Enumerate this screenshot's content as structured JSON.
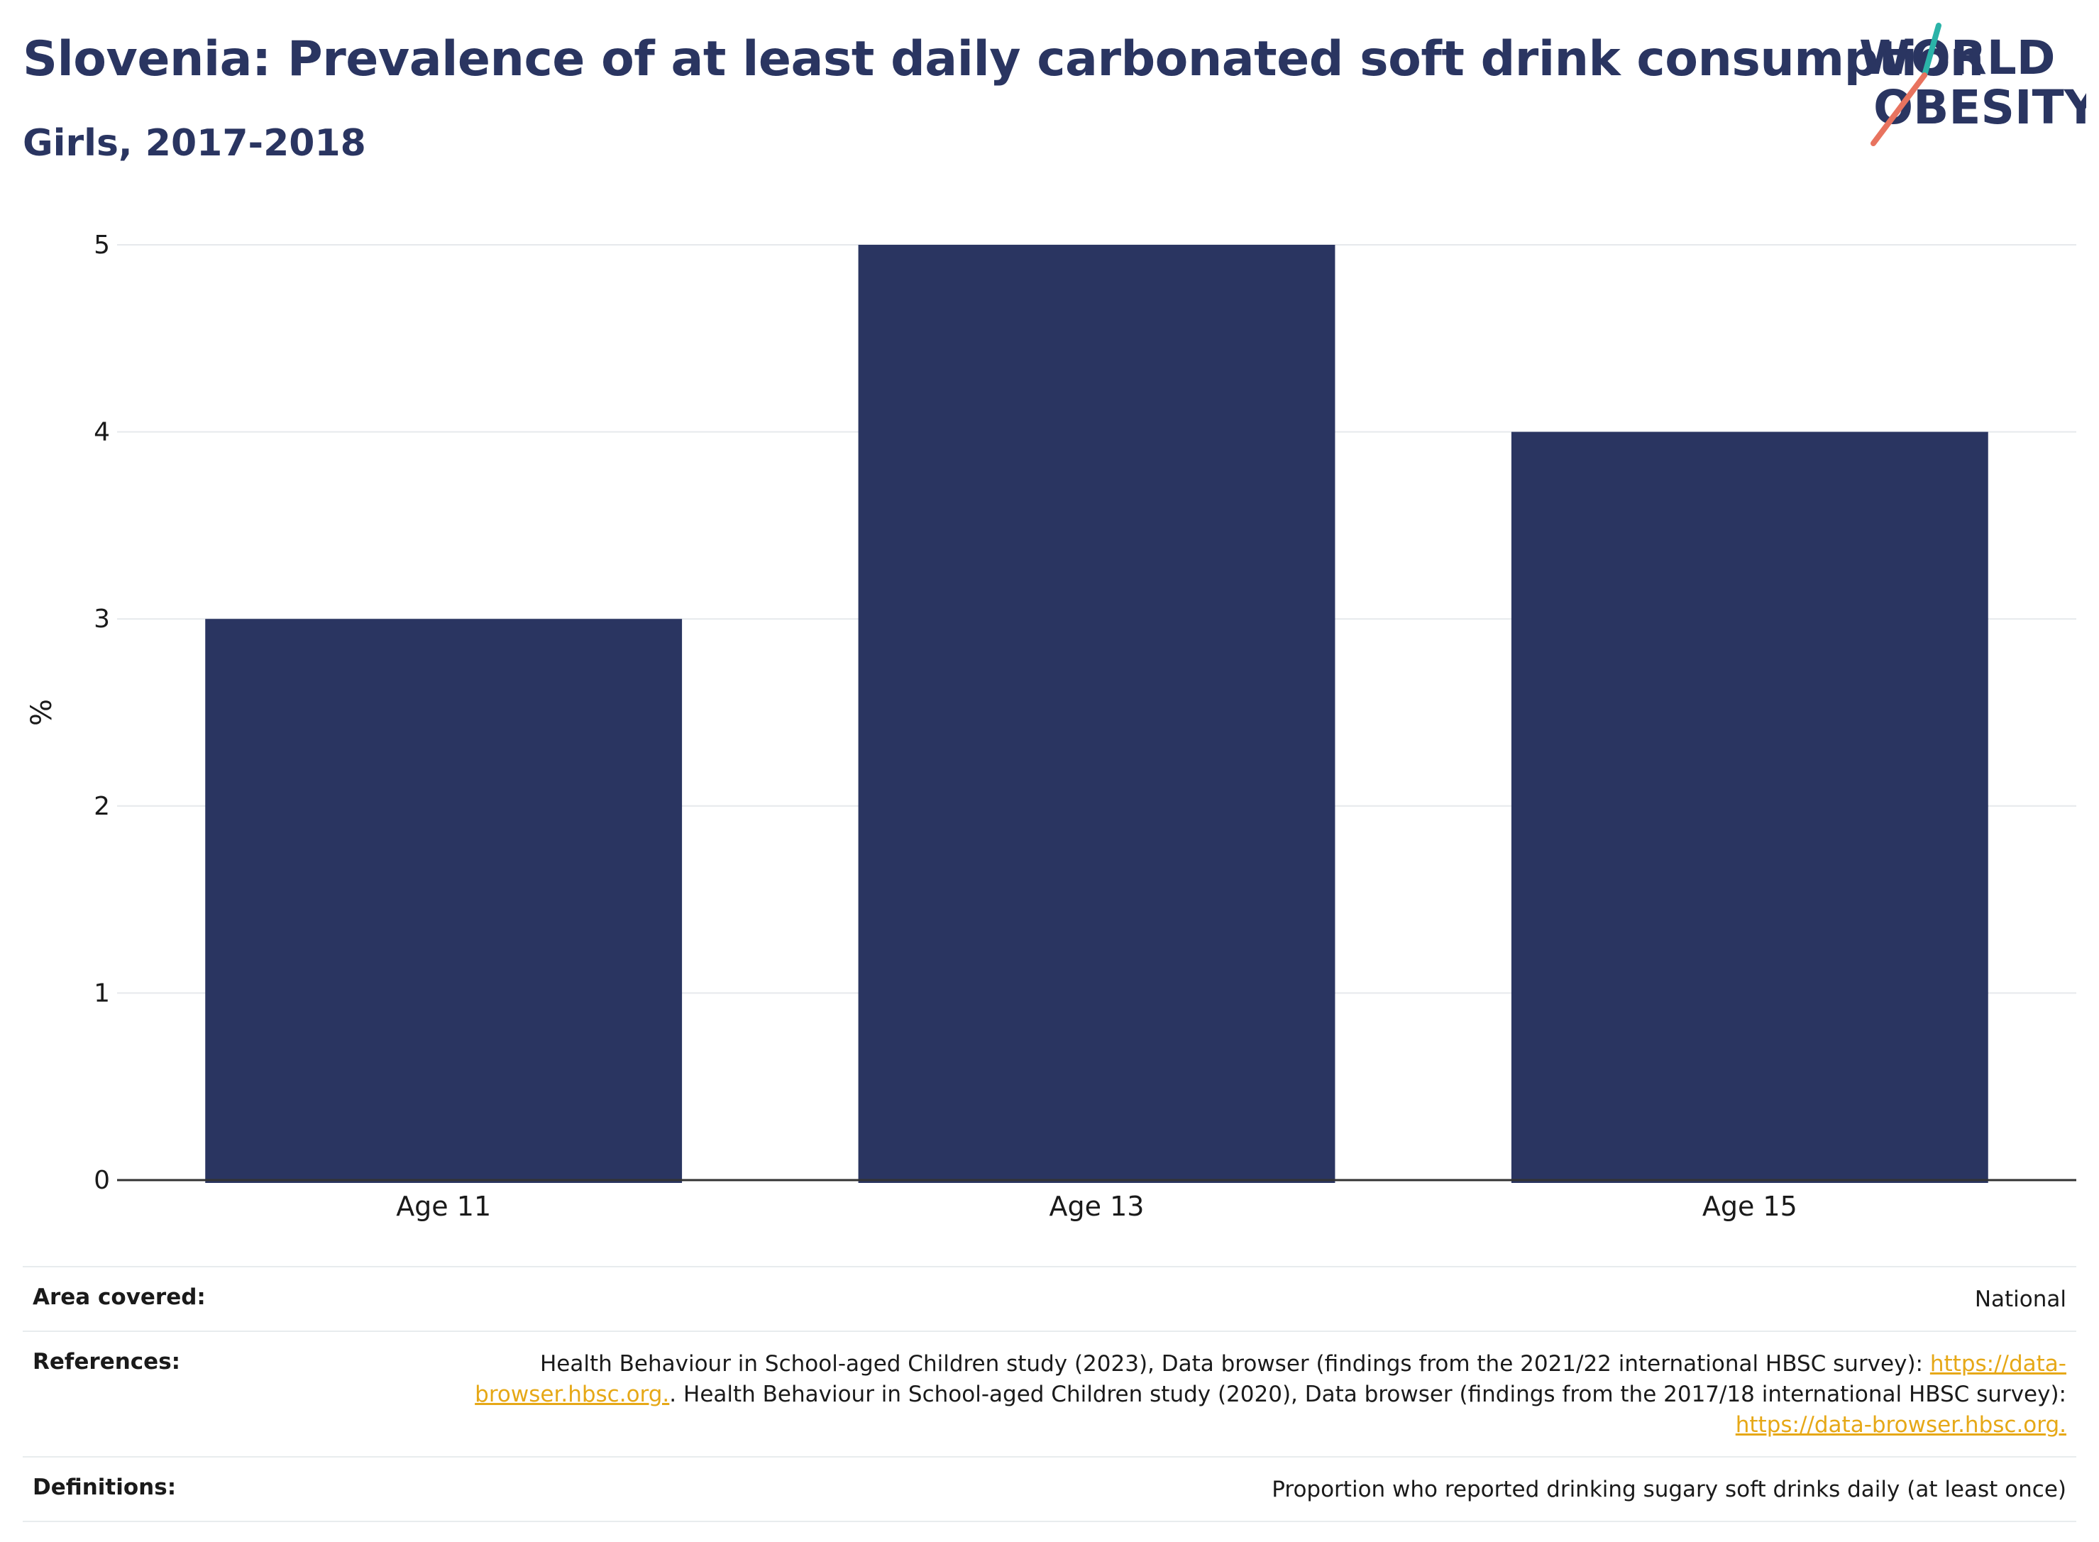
{
  "header": {
    "title": "Slovenia: Prevalence of at least daily carbonated soft drink consumption",
    "subtitle": "Girls, 2017-2018"
  },
  "logo": {
    "line1": "WORLD",
    "line2": "OBESITY",
    "text_color": "#2a3561",
    "accent_teal": "#2bb3a8",
    "accent_coral": "#e8735f"
  },
  "chart_data": {
    "type": "bar",
    "categories": [
      "Age 11",
      "Age 13",
      "Age 15"
    ],
    "values": [
      3,
      5,
      4
    ],
    "ylabel": "%",
    "ylim": [
      0,
      5
    ],
    "yticks": [
      0,
      1,
      2,
      3,
      4,
      5
    ],
    "grid": true,
    "bar_color": "#2a3561"
  },
  "meta": {
    "area_label": "Area covered:",
    "area_value": "National",
    "references_label": "References:",
    "references_text1": "Health Behaviour in School-aged Children study (2023), Data browser (findings from the 2021/22 international HBSC survey):",
    "references_link1": "https://data-browser.hbsc.org.",
    "references_text2": ". Health Behaviour in School-aged Children study (2020), Data browser (findings from the 2017/18 international HBSC survey):",
    "references_link2": "https://data-browser.hbsc.org.",
    "definitions_label": "Definitions:",
    "definitions_value": "Proportion who reported drinking sugary soft drinks daily (at least once)"
  }
}
